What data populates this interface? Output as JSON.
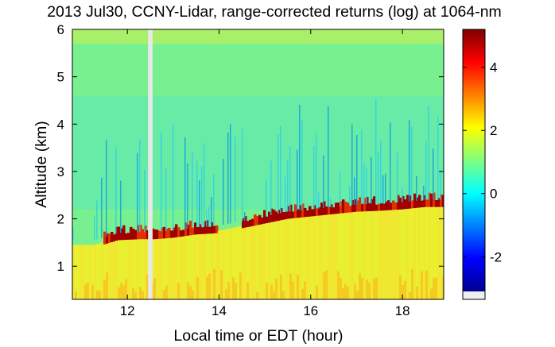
{
  "chart_data": {
    "type": "heatmap",
    "title": "2013 Jul30, CCNY-Lidar, range-corrected returns (log) at 1064-nm",
    "xlabel": "Local time or EDT (hour)",
    "ylabel": "Altitude (km)",
    "xlim": [
      10.8,
      18.9
    ],
    "ylim": [
      0.3,
      6.0
    ],
    "xticks": [
      12,
      14,
      16,
      18
    ],
    "xtick_labels": [
      "12",
      "14",
      "16",
      "18"
    ],
    "yticks": [
      1,
      2,
      3,
      4,
      5,
      6
    ],
    "ytick_labels": [
      "1",
      "2",
      "3",
      "4",
      "5",
      "6"
    ],
    "colorbar": {
      "colormap": "jet",
      "range": [
        -3.1,
        5.2
      ],
      "ticks": [
        -2,
        0,
        2,
        4
      ],
      "tick_labels": [
        "-2",
        "0",
        "2",
        "4"
      ]
    },
    "data_gap": [
      12.45,
      12.55
    ],
    "boundary_layer_top_km": {
      "x": [
        11.3,
        11.8,
        12.3,
        12.6,
        13.0,
        13.5,
        14.0,
        14.5,
        15.0,
        15.5,
        16.0,
        16.5,
        17.0,
        17.5,
        18.0,
        18.5
      ],
      "y": [
        1.45,
        1.6,
        1.62,
        1.62,
        1.65,
        1.72,
        1.75,
        1.85,
        1.95,
        2.05,
        2.1,
        2.15,
        2.2,
        2.22,
        2.25,
        2.3
      ]
    },
    "grid": false
  }
}
